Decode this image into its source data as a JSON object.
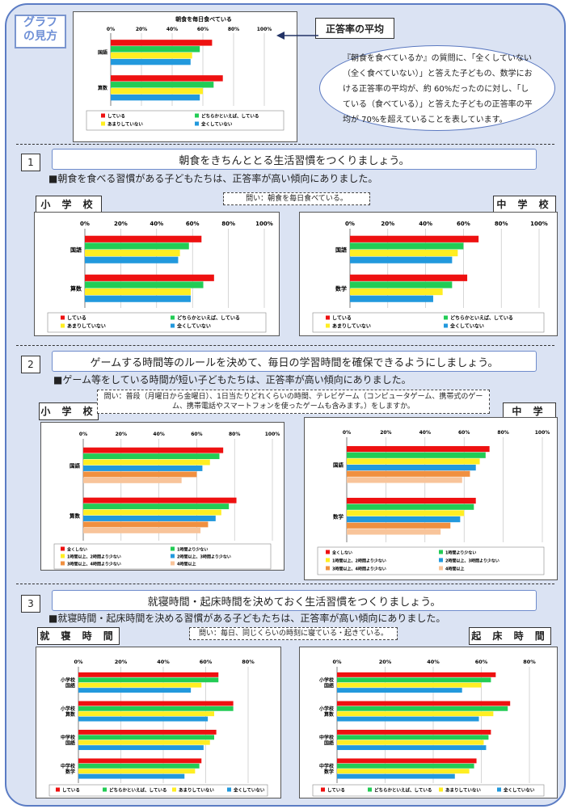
{
  "colors": {
    "red": "#ee1111",
    "green": "#22cc55",
    "yellow": "#ffee22",
    "blue": "#2299dd",
    "peach": "#f8c49a",
    "orange": "#f09040",
    "frame": "#5b7cc4",
    "background": "#dbe3f3"
  },
  "guide": {
    "tag": "グラフ\nの見方",
    "average_label": "正答率の平均",
    "callout": "『朝食を食べているか』の質問に、「全くしていない（全く食べていない）」と答えた子どもの、数学における正答率の平均が、約 60%だったのに対し、「している（食べている）」と答えた子どもの正答率の平均が 70%を超えていることを表しています。"
  },
  "sections": [
    {
      "num": "1",
      "title": "朝食をきちんととる生活習慣をつくりましょう。",
      "finding": "■朝食を食べる習慣がある子どもたちは、正答率が高い傾向にありました。",
      "question": "問い：朝食を毎日食べている。",
      "left_label": "小 学 校",
      "right_label": "中 学 校"
    },
    {
      "num": "2",
      "title": "ゲームする時間等のルールを決めて、毎日の学習時間を確保できるようにしましょう。",
      "finding": "■ゲーム等をしている時間が短い子どもたちは、正答率が高い傾向にありました。",
      "question": "問い：普段（月曜日から金曜日）、1日当たりどれくらいの時間、テレビゲーム（コンピュータゲーム、携帯式のゲーム、携帯電話やスマートフォンを使ったゲームも含みます。）をしますか。",
      "left_label": "小 学 校",
      "right_label": "中 学 校"
    },
    {
      "num": "3",
      "title": "就寝時間・起床時間を決めておく生活習慣をつくりましょう。",
      "finding": "■就寝時間・起床時間を決める習慣がある子どもたちは、正答率が高い傾向にありました。",
      "question": "問い：毎日、同じくらいの時刻に寝ている・起きている。",
      "left_label": "就 寝 時 間",
      "right_label": "起 床 時 間"
    }
  ],
  "chart_data": [
    {
      "id": "guide",
      "type": "bar",
      "orientation": "horizontal",
      "title": "朝食を毎日食べている",
      "ticks": [
        "0%",
        "20%",
        "40%",
        "60%",
        "80%",
        "100%"
      ],
      "xlim": [
        0,
        100
      ],
      "categories": [
        "国語",
        "算数"
      ],
      "series": [
        {
          "name": "している",
          "values": [
            66,
            73
          ]
        },
        {
          "name": "どちらかといえば、している",
          "values": [
            58,
            67
          ]
        },
        {
          "name": "あまりしていない",
          "values": [
            53,
            60
          ]
        },
        {
          "name": "全くしていない",
          "values": [
            52,
            58
          ]
        }
      ],
      "legend": [
        "している",
        "どちらかといえば、している",
        "あまりしていない",
        "全くしていない"
      ],
      "series_colors": [
        "red",
        "green",
        "yellow",
        "blue"
      ]
    },
    {
      "id": "s1-elem",
      "type": "bar",
      "orientation": "horizontal",
      "ticks": [
        "0%",
        "20%",
        "40%",
        "60%",
        "80%",
        "100%"
      ],
      "xlim": [
        0,
        100
      ],
      "categories": [
        "国語",
        "算数"
      ],
      "series": [
        {
          "name": "している",
          "values": [
            65,
            72
          ]
        },
        {
          "name": "どちらかといえば、している",
          "values": [
            58,
            66
          ]
        },
        {
          "name": "あまりしていない",
          "values": [
            53,
            59
          ]
        },
        {
          "name": "全くしていない",
          "values": [
            52,
            59
          ]
        }
      ],
      "legend": [
        "している",
        "どちらかといえば、している",
        "あまりしていない",
        "全くしていない"
      ],
      "series_colors": [
        "red",
        "green",
        "yellow",
        "blue"
      ]
    },
    {
      "id": "s1-jh",
      "type": "bar",
      "orientation": "horizontal",
      "ticks": [
        "0%",
        "20%",
        "40%",
        "60%",
        "80%",
        "100%"
      ],
      "xlim": [
        0,
        100
      ],
      "categories": [
        "国語",
        "数学"
      ],
      "series": [
        {
          "name": "している",
          "values": [
            68,
            62
          ]
        },
        {
          "name": "どちらかといえば、している",
          "values": [
            60,
            54
          ]
        },
        {
          "name": "あまりしていない",
          "values": [
            57,
            49
          ]
        },
        {
          "name": "全くしていない",
          "values": [
            54,
            44
          ]
        }
      ],
      "legend": [
        "している",
        "どちらかといえば、している",
        "あまりしていない",
        "全くしていない"
      ],
      "series_colors": [
        "red",
        "green",
        "yellow",
        "blue"
      ]
    },
    {
      "id": "s2-elem",
      "type": "bar",
      "orientation": "horizontal",
      "ticks": [
        "0%",
        "20%",
        "40%",
        "60%",
        "80%",
        "100%"
      ],
      "xlim": [
        0,
        100
      ],
      "categories": [
        "国語",
        "算数"
      ],
      "series": [
        {
          "name": "全くしない",
          "values": [
            74,
            81
          ]
        },
        {
          "name": "1時間より少ない",
          "values": [
            72,
            77
          ]
        },
        {
          "name": "1時間以上、2時間より少ない",
          "values": [
            67,
            73
          ]
        },
        {
          "name": "2時間以上、3時間より少ない",
          "values": [
            63,
            70
          ]
        },
        {
          "name": "3時間以上、4時間より少ない",
          "values": [
            60,
            66
          ]
        },
        {
          "name": "4時間以上",
          "values": [
            52,
            62
          ]
        }
      ],
      "legend": [
        "全くしない",
        "1時間より少ない",
        "1時間以上、2時間より少ない",
        "2時間以上、3時間より少ない",
        "3時間以上、4時間より少ない",
        "4時間以上"
      ],
      "series_colors": [
        "red",
        "green",
        "yellow",
        "blue",
        "orange",
        "peach"
      ]
    },
    {
      "id": "s2-jh",
      "type": "bar",
      "orientation": "horizontal",
      "ticks": [
        "0%",
        "20%",
        "40%",
        "60%",
        "80%",
        "100%"
      ],
      "xlim": [
        0,
        100
      ],
      "categories": [
        "国語",
        "数学"
      ],
      "series": [
        {
          "name": "全くしない",
          "values": [
            73,
            66
          ]
        },
        {
          "name": "1時間より少ない",
          "values": [
            71,
            65
          ]
        },
        {
          "name": "1時間以上、2時間より少ない",
          "values": [
            68,
            60
          ]
        },
        {
          "name": "2時間以上、3時間より少ない",
          "values": [
            66,
            58
          ]
        },
        {
          "name": "3時間以上、4時間より少ない",
          "values": [
            63,
            53
          ]
        },
        {
          "name": "4時間以上",
          "values": [
            59,
            48
          ]
        }
      ],
      "legend": [
        "全くしない",
        "1時間より少ない",
        "1時間以上、2時間より少ない",
        "2時間以上、3時間より少ない",
        "3時間以上、4時間より少ない",
        "4時間以上"
      ],
      "series_colors": [
        "red",
        "green",
        "yellow",
        "blue",
        "orange",
        "peach"
      ]
    },
    {
      "id": "s3-bed",
      "type": "bar",
      "orientation": "horizontal",
      "ticks": [
        "0%",
        "20%",
        "40%",
        "60%",
        "80%"
      ],
      "xlim": [
        0,
        80
      ],
      "categories": [
        "小学校\n国語",
        "小学校\n算数",
        "中学校\n国語",
        "中学校\n数学"
      ],
      "series": [
        {
          "name": "している",
          "values": [
            66,
            73,
            65,
            58
          ]
        },
        {
          "name": "どちらかといえば、している",
          "values": [
            66,
            73,
            64,
            57
          ]
        },
        {
          "name": "あまりしていない",
          "values": [
            58,
            64,
            62,
            55
          ]
        },
        {
          "name": "全くしていない",
          "values": [
            53,
            61,
            59,
            50
          ]
        }
      ],
      "legend": [
        "している",
        "どちらかといえば、している",
        "あまりしていない",
        "全くしていない"
      ],
      "series_colors": [
        "red",
        "green",
        "yellow",
        "blue"
      ]
    },
    {
      "id": "s3-wake",
      "type": "bar",
      "orientation": "horizontal",
      "ticks": [
        "0%",
        "20%",
        "40%",
        "60%",
        "80%"
      ],
      "xlim": [
        0,
        80
      ],
      "categories": [
        "小学校\n国語",
        "小学校\n算数",
        "中学校\n国語",
        "中学校\n数学"
      ],
      "series": [
        {
          "name": "している",
          "values": [
            66,
            72,
            64,
            58
          ]
        },
        {
          "name": "どちらかといえば、している",
          "values": [
            64,
            71,
            63,
            57
          ]
        },
        {
          "name": "あまりしていない",
          "values": [
            60,
            65,
            61,
            55
          ]
        },
        {
          "name": "全くしていない",
          "values": [
            52,
            59,
            62,
            49
          ]
        }
      ],
      "legend": [
        "している",
        "どちらかといえば、している",
        "あまりしていない",
        "全くしていない"
      ],
      "series_colors": [
        "red",
        "green",
        "yellow",
        "blue"
      ]
    }
  ]
}
